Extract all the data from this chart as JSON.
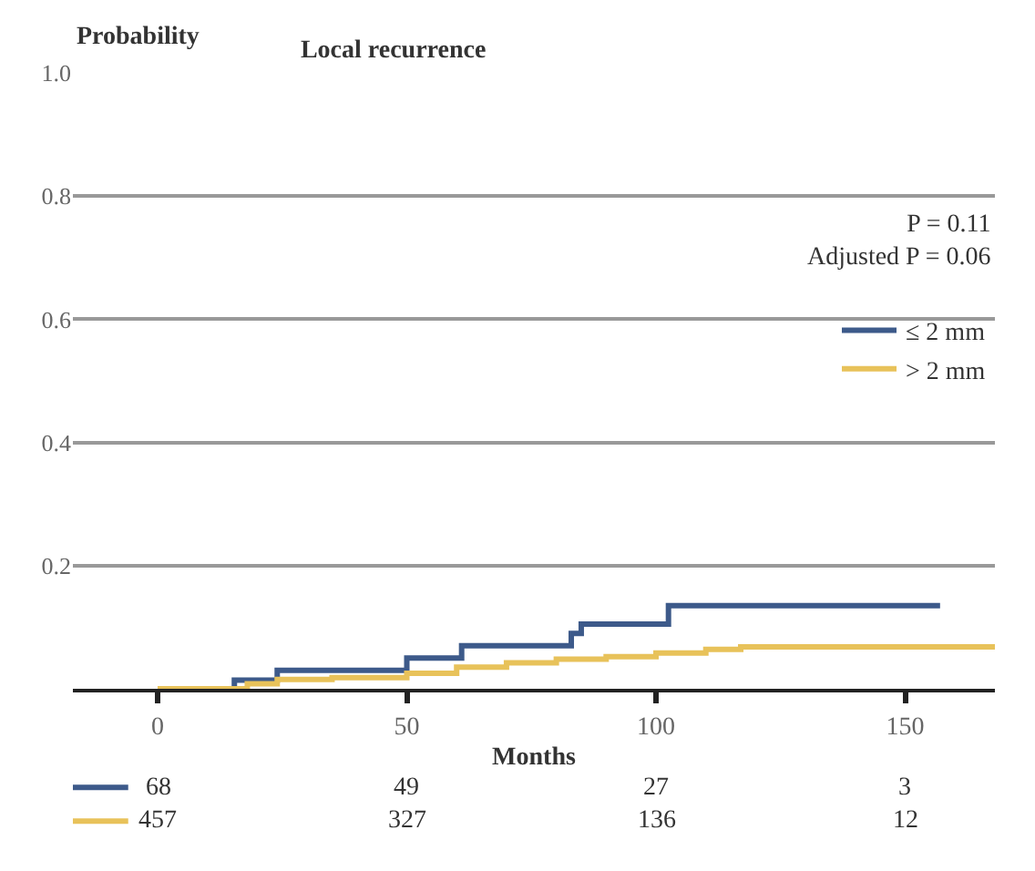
{
  "chart_data": {
    "type": "step",
    "title": "Local recurrence",
    "ylabel": "Probability",
    "xlabel": "Months",
    "series": [
      {
        "name": "≤ 2 mm",
        "color": "#3d5a8a",
        "x": [
          0,
          15.4,
          24,
          50,
          61,
          83,
          85,
          102.5,
          157
        ],
        "values": [
          0,
          0.014,
          0.03,
          0.05,
          0.07,
          0.09,
          0.105,
          0.135,
          0.135
        ]
      },
      {
        "name": "> 2 mm",
        "color": "#e8c25a",
        "x": [
          0,
          18,
          24,
          35,
          50,
          60,
          70,
          80,
          90,
          100,
          110,
          117,
          168
        ],
        "values": [
          0,
          0.008,
          0.015,
          0.018,
          0.025,
          0.035,
          0.042,
          0.048,
          0.052,
          0.058,
          0.064,
          0.068,
          0.068
        ]
      }
    ],
    "xlim": [
      -17,
      168
    ],
    "xticks": [
      0,
      50,
      100,
      150
    ],
    "ylim": [
      0,
      1.0
    ],
    "yticks": [
      {
        "value": 0.2,
        "label": "0.2"
      },
      {
        "value": 0.4,
        "label": "0.4"
      },
      {
        "value": 0.6,
        "label": "0.6"
      },
      {
        "value": 0.8,
        "label": "0.8"
      },
      {
        "value": 1.0,
        "label": "1.0"
      }
    ],
    "grid": "y",
    "legend": "right",
    "annotations": [
      "P = 0.11",
      "Adjusted P = 0.06",
      "68",
      "49",
      "27",
      "3",
      "457",
      "327",
      "136",
      "12"
    ]
  }
}
